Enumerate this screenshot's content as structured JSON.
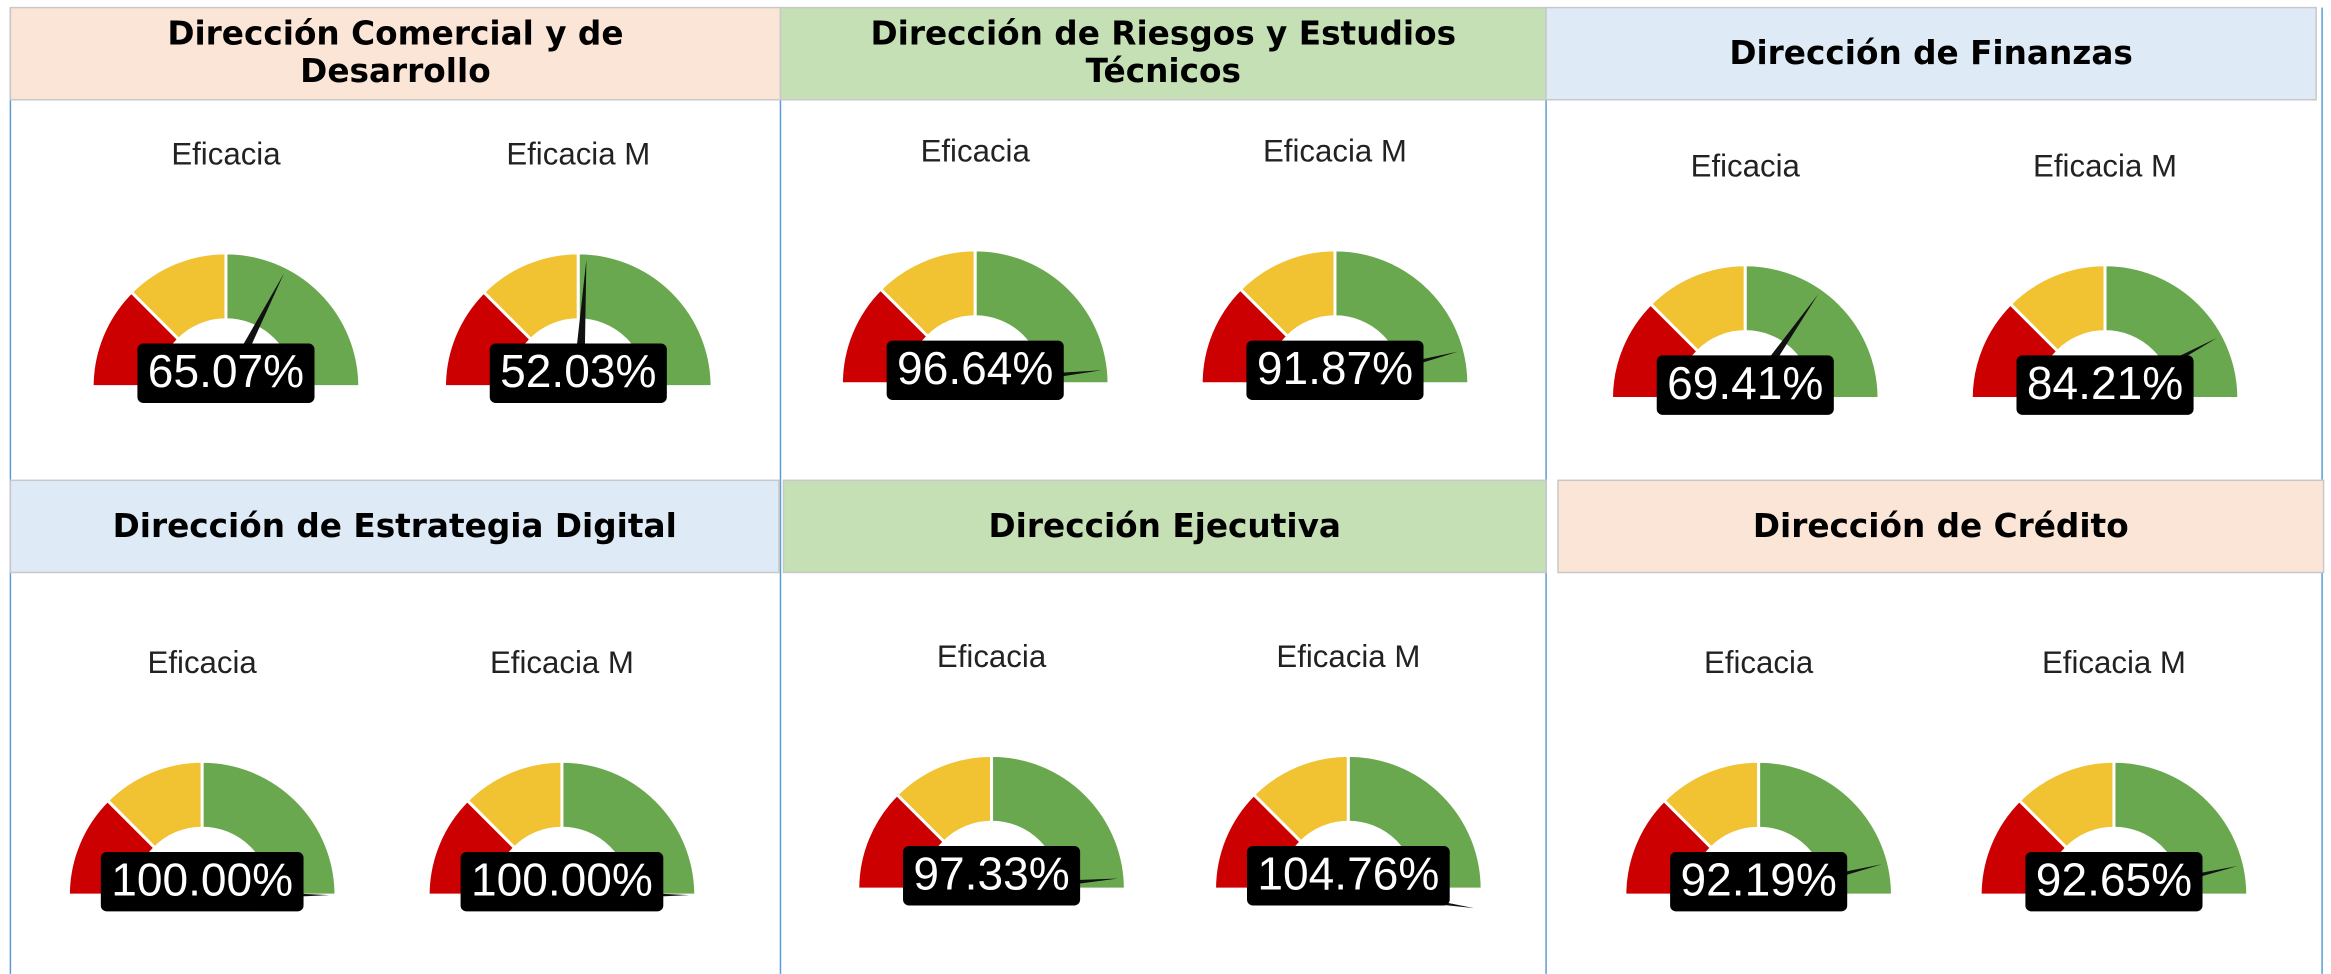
{
  "panels": [
    {
      "title": "Dirección Comercial y de Desarrollo",
      "color": "#fbe5d6",
      "chart_data": [
        {
          "type": "gauge",
          "title": "Eficacia",
          "value": 65.07,
          "value_label": "65.07%",
          "ylim": [
            0,
            100
          ],
          "bands": [
            {
              "to": 25,
              "color": "#cc0000"
            },
            {
              "to": 50,
              "color": "#f1c232"
            },
            {
              "to": 100,
              "color": "#6aa84f"
            }
          ]
        },
        {
          "type": "gauge",
          "title": "Eficacia M",
          "value": 52.03,
          "value_label": "52.03%",
          "ylim": [
            0,
            100
          ],
          "bands": [
            {
              "to": 25,
              "color": "#cc0000"
            },
            {
              "to": 50,
              "color": "#f1c232"
            },
            {
              "to": 100,
              "color": "#6aa84f"
            }
          ]
        }
      ]
    },
    {
      "title": "Dirección de Riesgos y Estudios Técnicos",
      "color": "#c5e0b4",
      "chart_data": [
        {
          "type": "gauge",
          "title": "Eficacia",
          "value": 96.64,
          "value_label": "96.64%",
          "ylim": [
            0,
            100
          ],
          "bands": [
            {
              "to": 25,
              "color": "#cc0000"
            },
            {
              "to": 50,
              "color": "#f1c232"
            },
            {
              "to": 100,
              "color": "#6aa84f"
            }
          ]
        },
        {
          "type": "gauge",
          "title": "Eficacia M",
          "value": 91.87,
          "value_label": "91.87%",
          "ylim": [
            0,
            100
          ],
          "bands": [
            {
              "to": 25,
              "color": "#cc0000"
            },
            {
              "to": 50,
              "color": "#f1c232"
            },
            {
              "to": 100,
              "color": "#6aa84f"
            }
          ]
        }
      ]
    },
    {
      "title": "Dirección de Finanzas",
      "color": "#deebf7",
      "chart_data": [
        {
          "type": "gauge",
          "title": "Eficacia",
          "value": 69.41,
          "value_label": "69.41%",
          "ylim": [
            0,
            100
          ],
          "bands": [
            {
              "to": 25,
              "color": "#cc0000"
            },
            {
              "to": 50,
              "color": "#f1c232"
            },
            {
              "to": 100,
              "color": "#6aa84f"
            }
          ]
        },
        {
          "type": "gauge",
          "title": "Eficacia M",
          "value": 84.21,
          "value_label": "84.21%",
          "ylim": [
            0,
            100
          ],
          "bands": [
            {
              "to": 25,
              "color": "#cc0000"
            },
            {
              "to": 50,
              "color": "#f1c232"
            },
            {
              "to": 100,
              "color": "#6aa84f"
            }
          ]
        }
      ]
    },
    {
      "title": "Dirección de Estrategia Digital",
      "color": "#deebf7",
      "chart_data": [
        {
          "type": "gauge",
          "title": "Eficacia",
          "value": 100.0,
          "value_label": "100.00%",
          "ylim": [
            0,
            100
          ],
          "bands": [
            {
              "to": 25,
              "color": "#cc0000"
            },
            {
              "to": 50,
              "color": "#f1c232"
            },
            {
              "to": 100,
              "color": "#6aa84f"
            }
          ]
        },
        {
          "type": "gauge",
          "title": "Eficacia M",
          "value": 100.0,
          "value_label": "100.00%",
          "ylim": [
            0,
            100
          ],
          "bands": [
            {
              "to": 25,
              "color": "#cc0000"
            },
            {
              "to": 50,
              "color": "#f1c232"
            },
            {
              "to": 100,
              "color": "#6aa84f"
            }
          ]
        }
      ]
    },
    {
      "title": "Dirección Ejecutiva",
      "color": "#c5e0b4",
      "chart_data": [
        {
          "type": "gauge",
          "title": "Eficacia",
          "value": 97.33,
          "value_label": "97.33%",
          "ylim": [
            0,
            100
          ],
          "bands": [
            {
              "to": 25,
              "color": "#cc0000"
            },
            {
              "to": 50,
              "color": "#f1c232"
            },
            {
              "to": 100,
              "color": "#6aa84f"
            }
          ]
        },
        {
          "type": "gauge",
          "title": "Eficacia M",
          "value": 104.76,
          "value_label": "104.76%",
          "ylim": [
            0,
            100
          ],
          "bands": [
            {
              "to": 25,
              "color": "#cc0000"
            },
            {
              "to": 50,
              "color": "#f1c232"
            },
            {
              "to": 100,
              "color": "#6aa84f"
            }
          ]
        }
      ]
    },
    {
      "title": "Dirección de Crédito",
      "color": "#fbe5d6",
      "chart_data": [
        {
          "type": "gauge",
          "title": "Eficacia",
          "value": 92.19,
          "value_label": "92.19%",
          "ylim": [
            0,
            100
          ],
          "bands": [
            {
              "to": 25,
              "color": "#cc0000"
            },
            {
              "to": 50,
              "color": "#f1c232"
            },
            {
              "to": 100,
              "color": "#6aa84f"
            }
          ]
        },
        {
          "type": "gauge",
          "title": "Eficacia M",
          "value": 92.65,
          "value_label": "92.65%",
          "ylim": [
            0,
            100
          ],
          "bands": [
            {
              "to": 25,
              "color": "#cc0000"
            },
            {
              "to": 50,
              "color": "#f1c232"
            },
            {
              "to": 100,
              "color": "#6aa84f"
            }
          ]
        }
      ]
    }
  ]
}
